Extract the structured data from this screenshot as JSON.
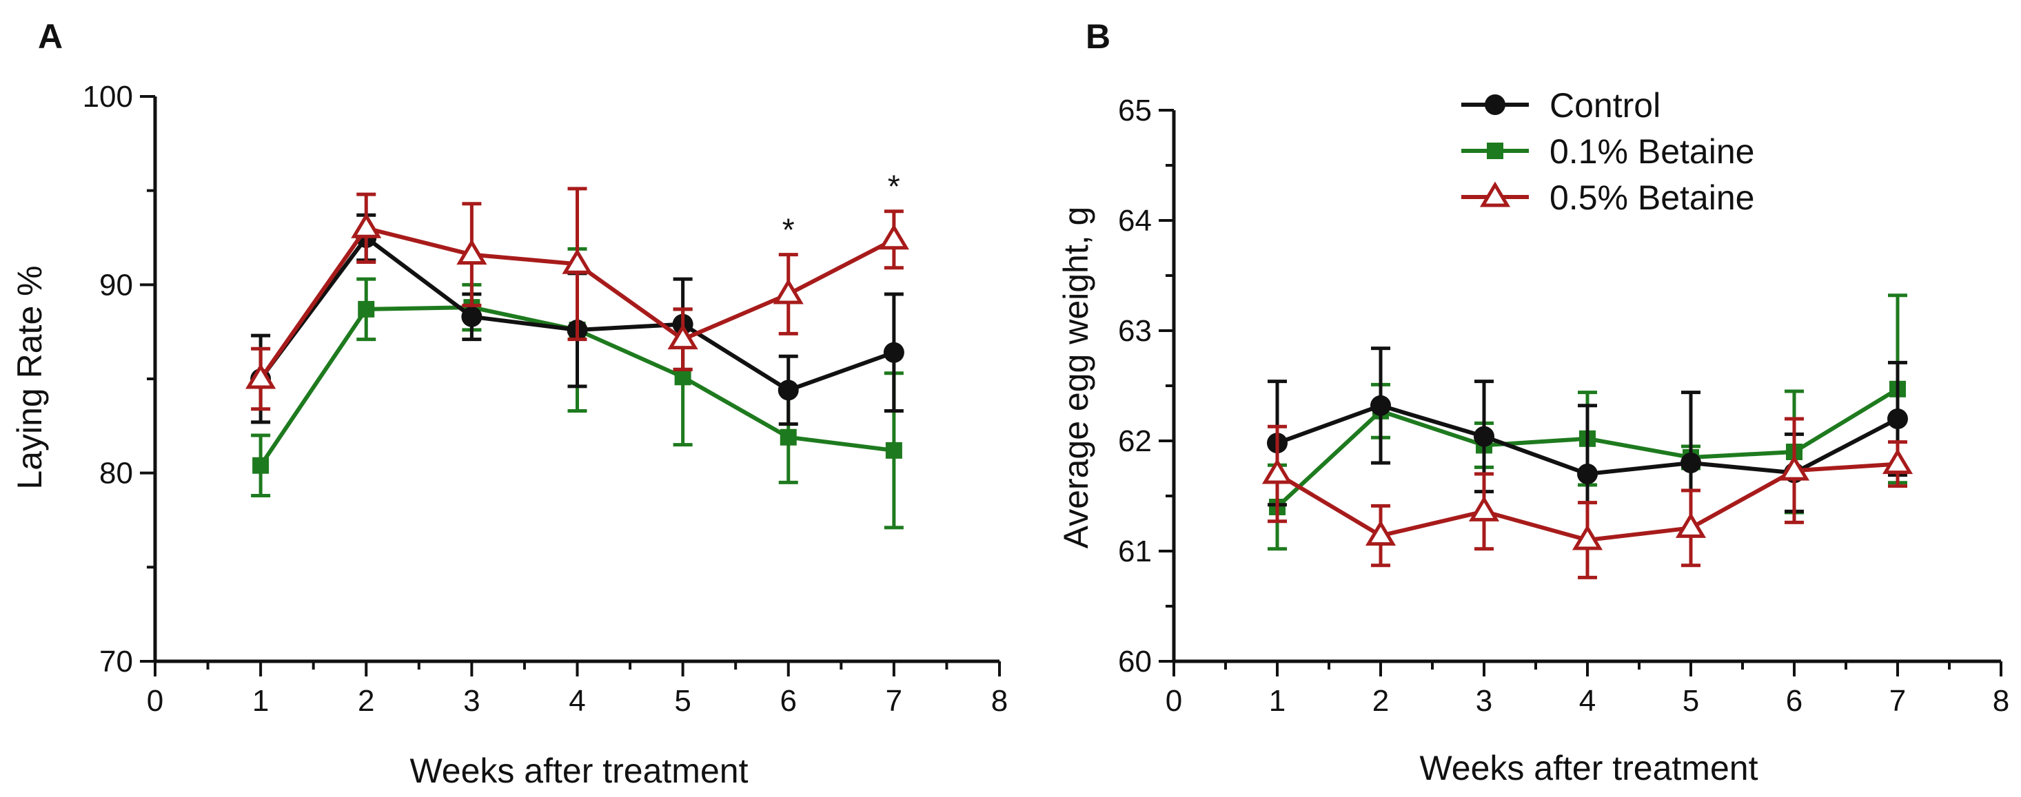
{
  "colors": {
    "control": "#111111",
    "b01": "#1e7a1e",
    "b05": "#a81b1b"
  },
  "legend": [
    {
      "name": "Control",
      "color": "#111111",
      "marker": "circle"
    },
    {
      "name": "0.1% Betaine",
      "color": "#1e7a1e",
      "marker": "square"
    },
    {
      "name": "0.5% Betaine",
      "color": "#a81b1b",
      "marker": "triangle-open"
    }
  ],
  "chart_data": [
    {
      "type": "line",
      "panel": "A",
      "xlabel": "Weeks after treatment",
      "ylabel": "Laying Rate %",
      "xlim": [
        0,
        8
      ],
      "ylim": [
        70,
        100
      ],
      "x_ticks": [
        "0",
        "1",
        "2",
        "3",
        "4",
        "5",
        "6",
        "7",
        "8"
      ],
      "y_ticks": [
        "70",
        "80",
        "90",
        "100"
      ],
      "x": [
        1,
        2,
        3,
        4,
        5,
        6,
        7
      ],
      "series": [
        {
          "name": "Control",
          "values": [
            85.0,
            92.5,
            88.3,
            87.6,
            87.9,
            84.4,
            86.4
          ],
          "errors": [
            2.3,
            1.2,
            1.2,
            3.0,
            2.4,
            1.8,
            3.1
          ]
        },
        {
          "name": "0.1% Betaine",
          "values": [
            80.4,
            88.7,
            88.8,
            87.6,
            85.1,
            81.9,
            81.2
          ],
          "errors": [
            1.6,
            1.6,
            1.2,
            4.3,
            3.6,
            2.4,
            4.1
          ]
        },
        {
          "name": "0.5% Betaine",
          "values": [
            85.0,
            93.0,
            91.6,
            91.1,
            87.1,
            89.5,
            92.4
          ],
          "errors": [
            1.6,
            1.8,
            2.7,
            4.0,
            1.6,
            2.1,
            1.5
          ]
        }
      ],
      "annotations": [
        {
          "x": 6,
          "label": "*"
        },
        {
          "x": 7,
          "label": "*"
        }
      ]
    },
    {
      "type": "line",
      "panel": "B",
      "xlabel": "Weeks after treatment",
      "ylabel": "Average egg weight, g",
      "xlim": [
        0,
        8
      ],
      "ylim": [
        60,
        65
      ],
      "x_ticks": [
        "0",
        "1",
        "2",
        "3",
        "4",
        "5",
        "6",
        "7",
        "8"
      ],
      "y_ticks": [
        "60",
        "61",
        "62",
        "63",
        "64",
        "65"
      ],
      "x": [
        1,
        2,
        3,
        4,
        5,
        6,
        7
      ],
      "series": [
        {
          "name": "Control",
          "values": [
            61.98,
            62.32,
            62.04,
            61.7,
            61.8,
            61.71,
            62.2
          ],
          "errors": [
            0.56,
            0.52,
            0.5,
            0.62,
            0.64,
            0.35,
            0.51
          ]
        },
        {
          "name": "0.1% Betaine",
          "values": [
            61.4,
            62.27,
            61.96,
            62.02,
            61.85,
            61.9,
            62.47
          ],
          "errors": [
            0.38,
            0.24,
            0.2,
            0.42,
            0.1,
            0.55,
            0.85
          ]
        },
        {
          "name": "0.5% Betaine",
          "values": [
            61.7,
            61.14,
            61.36,
            61.1,
            61.21,
            61.73,
            61.79
          ],
          "errors": [
            0.43,
            0.27,
            0.34,
            0.34,
            0.34,
            0.47,
            0.2
          ]
        }
      ],
      "annotations": []
    }
  ]
}
